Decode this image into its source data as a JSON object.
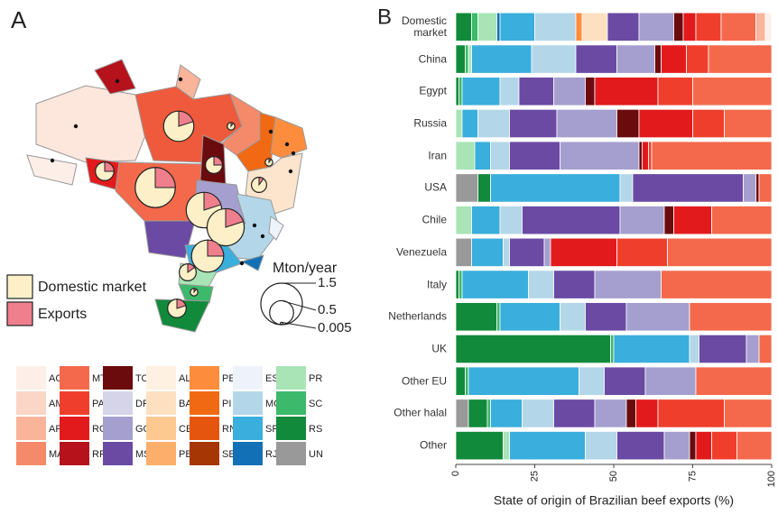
{
  "panel_labels": [
    "A",
    "B"
  ],
  "chart_data": {
    "type": "bar",
    "orientation": "horizontal",
    "stacked": true,
    "xlabel": "State of origin of Brazilian beef exports (%)",
    "xlim": [
      0,
      100
    ],
    "xticks": [
      0,
      25,
      50,
      75,
      100
    ],
    "categories": [
      "Domestic market",
      "China",
      "Egypt",
      "Russia",
      "Iran",
      "USA",
      "Chile",
      "Venezuela",
      "Italy",
      "Netherlands",
      "UK",
      "Other EU",
      "Other halal",
      "Other"
    ],
    "series": [
      {
        "name": "AC",
        "color": "#fdeee8",
        "values": [
          2,
          0,
          0,
          0,
          0,
          0,
          0,
          0,
          0,
          0,
          0,
          0,
          0,
          0
        ]
      },
      {
        "name": "AM",
        "color": "#fbd5c6",
        "values": [
          0,
          0,
          0,
          0,
          0,
          0,
          0,
          0,
          0,
          0,
          0,
          0,
          0,
          0
        ]
      },
      {
        "name": "AP",
        "color": "#f9b49a",
        "values": [
          3,
          0,
          0,
          0,
          0,
          0,
          0,
          0,
          0,
          0,
          0,
          0,
          0,
          0
        ]
      },
      {
        "name": "MA",
        "color": "#f58a6a",
        "values": [
          0,
          0,
          0,
          0,
          0,
          0,
          0,
          0,
          0,
          0,
          0,
          0,
          0,
          0
        ]
      },
      {
        "name": "MT",
        "color": "#f4694b",
        "values": [
          11,
          20,
          25,
          15,
          38,
          4,
          19,
          33,
          35,
          26,
          4,
          24,
          15,
          11
        ]
      },
      {
        "name": "PA",
        "color": "#ef3f2c",
        "values": [
          8,
          7,
          11,
          10,
          1,
          0,
          0,
          16,
          0,
          0,
          0,
          0,
          21,
          8
        ]
      },
      {
        "name": "RO",
        "color": "#e31a1c",
        "values": [
          4,
          8,
          20,
          17,
          2,
          0,
          12,
          21,
          0,
          0,
          0,
          0,
          7,
          5
        ]
      },
      {
        "name": "RR",
        "color": "#b5121b",
        "values": [
          0,
          0,
          0,
          0,
          0,
          0,
          0,
          0,
          0,
          0,
          0,
          0,
          0,
          0
        ]
      },
      {
        "name": "TO",
        "color": "#6b0b0e",
        "values": [
          3,
          2,
          3,
          7,
          1,
          1,
          3,
          0,
          0,
          0,
          0,
          0,
          3,
          2
        ]
      },
      {
        "name": "DF",
        "color": "#d6d4e8",
        "values": [
          0,
          0,
          0,
          0,
          0,
          0,
          0,
          0,
          0,
          0,
          0,
          0,
          0,
          0
        ]
      },
      {
        "name": "GO",
        "color": "#a59fcf",
        "values": [
          11,
          12,
          10,
          19,
          25,
          4,
          14,
          2,
          21,
          20,
          4,
          16,
          10,
          8
        ]
      },
      {
        "name": "MS",
        "color": "#6a4aa3",
        "values": [
          10,
          13,
          11,
          15,
          16,
          35,
          31,
          11,
          13,
          13,
          15,
          13,
          13,
          15
        ]
      },
      {
        "name": "AL",
        "color": "#fff1e1",
        "values": [
          0,
          0,
          0,
          0,
          0,
          0,
          0,
          0,
          0,
          0,
          0,
          0,
          0,
          0
        ]
      },
      {
        "name": "BA",
        "color": "#fde0c0",
        "values": [
          8,
          0,
          0,
          0,
          0,
          0,
          0,
          0,
          0,
          0,
          0,
          0,
          0,
          0
        ]
      },
      {
        "name": "CE",
        "color": "#fdc991",
        "values": [
          0,
          0,
          0,
          0,
          0,
          0,
          0,
          0,
          0,
          0,
          0,
          0,
          0,
          0
        ]
      },
      {
        "name": "PB",
        "color": "#fdae6b",
        "values": [
          0,
          0,
          0,
          0,
          0,
          0,
          0,
          0,
          0,
          0,
          0,
          0,
          0,
          0
        ]
      },
      {
        "name": "PE",
        "color": "#fd8d3c",
        "values": [
          2,
          0,
          0,
          0,
          0,
          0,
          0,
          0,
          0,
          0,
          0,
          0,
          0,
          0
        ]
      },
      {
        "name": "PI",
        "color": "#f16913",
        "values": [
          0,
          0,
          0,
          0,
          0,
          0,
          0,
          0,
          0,
          0,
          0,
          0,
          0,
          0
        ]
      },
      {
        "name": "RN",
        "color": "#e6550d",
        "values": [
          0,
          0,
          0,
          0,
          0,
          0,
          0,
          0,
          0,
          0,
          0,
          0,
          0,
          0
        ]
      },
      {
        "name": "SE",
        "color": "#a63603",
        "values": [
          0,
          0,
          0,
          0,
          0,
          0,
          0,
          0,
          0,
          0,
          0,
          0,
          0,
          0
        ]
      },
      {
        "name": "ES",
        "color": "#eef2fa",
        "values": [
          0,
          0,
          0,
          0,
          0,
          0,
          0,
          0,
          0,
          0,
          0,
          0,
          0,
          0
        ]
      },
      {
        "name": "MG",
        "color": "#b3d7e8",
        "values": [
          13,
          14,
          6,
          10,
          6,
          4,
          7,
          2,
          8,
          8,
          3,
          8,
          10,
          10
        ]
      },
      {
        "name": "SP",
        "color": "#3aaedc",
        "values": [
          11,
          19,
          12,
          5,
          5,
          41,
          9,
          10,
          21,
          19,
          24,
          35,
          10,
          24
        ]
      },
      {
        "name": "RJ",
        "color": "#1271b6",
        "values": [
          1,
          0,
          0,
          0,
          0,
          0,
          0,
          0,
          0,
          0,
          0,
          0,
          0,
          0
        ]
      },
      {
        "name": "PR",
        "color": "#a8e4b5",
        "values": [
          6,
          1,
          0,
          2,
          6,
          0,
          5,
          0,
          0,
          0,
          0,
          0,
          0,
          2
        ]
      },
      {
        "name": "SC",
        "color": "#3cb96a",
        "values": [
          2,
          1,
          1,
          0,
          0,
          0,
          0,
          0,
          1,
          1,
          1,
          1,
          1,
          0
        ]
      },
      {
        "name": "RS",
        "color": "#118a3b",
        "values": [
          5,
          3,
          1,
          0,
          0,
          4,
          0,
          0,
          1,
          13,
          49,
          3,
          6,
          15
        ]
      },
      {
        "name": "UN",
        "color": "#999999",
        "values": [
          0,
          0,
          0,
          0,
          0,
          7,
          0,
          5,
          0,
          0,
          0,
          0,
          4,
          0
        ]
      }
    ]
  },
  "map": {
    "type": "pie",
    "pie_legend": [
      {
        "name": "Domestic market",
        "color": "#fdf0c8"
      },
      {
        "name": "Exports",
        "color": "#ef7f8c"
      }
    ],
    "size_legend": {
      "title": "Mton/year",
      "values": [
        1.5,
        0.5,
        0.005
      ]
    },
    "pies": [
      {
        "total": 1.4,
        "exports": 25
      },
      {
        "total": 1.1,
        "exports": 20
      },
      {
        "total": 1.2,
        "exports": 20
      },
      {
        "total": 0.9,
        "exports": 25
      },
      {
        "total": 0.8,
        "exports": 20
      },
      {
        "total": 0.3,
        "exports": 25
      },
      {
        "total": 0.25,
        "exports": 25
      },
      {
        "total": 0.2,
        "exports": 10
      },
      {
        "total": 0.25,
        "exports": 15
      },
      {
        "total": 0.05,
        "exports": 10
      },
      {
        "total": 0.3,
        "exports": 20
      },
      {
        "total": 0.05,
        "exports": 10
      },
      {
        "total": 0.05,
        "exports": 10
      }
    ]
  }
}
